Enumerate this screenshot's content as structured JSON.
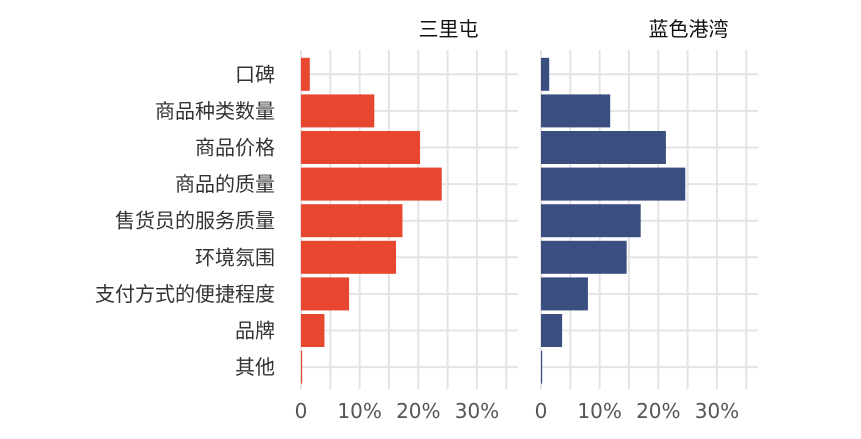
{
  "chart_data": {
    "type": "bar",
    "orientation": "horizontal",
    "title": "",
    "xlabel": "",
    "ylabel": "",
    "categories": [
      "口碑",
      "商品种类数量",
      "商品价格",
      "商品的质量",
      "售货员的服务质量",
      "环境氛围",
      "支付方式的便捷程度",
      "品牌",
      "其他"
    ],
    "xlim": [
      0,
      0.37
    ],
    "ticks": [
      0,
      0.1,
      0.2,
      0.3
    ],
    "tick_labels": [
      "0",
      "10%",
      "20%",
      "30%"
    ],
    "grid": true,
    "legend": "none",
    "series": [
      {
        "name": "三里屯",
        "color": "#e8472f",
        "values": [
          0.015,
          0.125,
          0.203,
          0.24,
          0.173,
          0.162,
          0.082,
          0.04,
          0.002
        ]
      },
      {
        "name": "蓝色港湾",
        "color": "#3a4e80",
        "values": [
          0.014,
          0.118,
          0.213,
          0.246,
          0.17,
          0.146,
          0.08,
          0.036,
          0.002
        ]
      }
    ]
  }
}
